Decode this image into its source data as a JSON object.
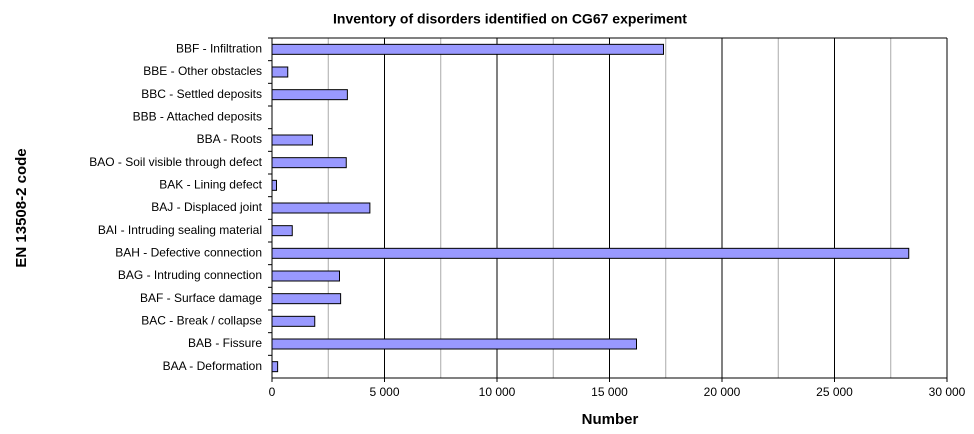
{
  "chart_data": {
    "type": "barh",
    "title": "Inventory of disorders identified on CG67 experiment",
    "xlabel": "Number",
    "ylabel": "EN 13508-2 code",
    "categories": [
      "BBF - Infiltration",
      "BBE - Other obstacles",
      "BBC - Settled deposits",
      "BBB - Attached deposits",
      "BBA - Roots",
      "BAO - Soil visible through defect",
      "BAK - Lining defect",
      "BAJ - Displaced joint",
      "BAI - Intruding sealing material",
      "BAH - Defective connection",
      "BAG - Intruding connection",
      "BAF - Surface damage",
      "BAC - Break / collapse",
      "BAB - Fissure",
      "BAA - Deformation"
    ],
    "values": [
      17400,
      700,
      3350,
      0,
      1800,
      3300,
      200,
      4350,
      900,
      28300,
      3000,
      3050,
      1900,
      16200,
      250
    ],
    "color": "#9999ff",
    "xlim": [
      0,
      30000
    ],
    "xticks": [
      0,
      {
        "value": 5000,
        "label": "5 000"
      },
      {
        "value": 10000,
        "label": "10 000"
      },
      {
        "value": 15000,
        "label": "15 000"
      },
      {
        "value": 20000,
        "label": "20 000"
      },
      {
        "value": 25000,
        "label": "25 000"
      },
      {
        "value": 30000,
        "label": "30 000"
      }
    ],
    "xminorticks": [
      2500,
      7500,
      12500,
      17500,
      22500,
      27500
    ],
    "grid": true
  }
}
